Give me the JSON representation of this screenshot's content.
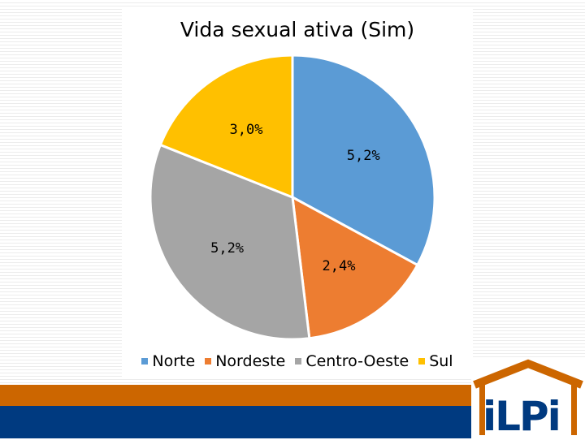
{
  "chart_data": {
    "type": "pie",
    "title": "Vida sexual ativa (Sim)",
    "slices": [
      {
        "name": "Norte",
        "value": 5.2,
        "label": "5,2%",
        "color": "#5b9bd5"
      },
      {
        "name": "Nordeste",
        "value": 2.4,
        "label": "2,4%",
        "color": "#ed7d31"
      },
      {
        "name": "Centro-Oeste",
        "value": 5.2,
        "label": "5,2%",
        "color": "#a5a5a5"
      },
      {
        "name": "Sul",
        "value": 3.0,
        "label": "3,0%",
        "color": "#ffc000"
      }
    ],
    "legend_position": "bottom"
  },
  "logo": {
    "text": "iLPi"
  },
  "colors": {
    "band_orange": "#cc6600",
    "band_blue": "#003a80"
  }
}
